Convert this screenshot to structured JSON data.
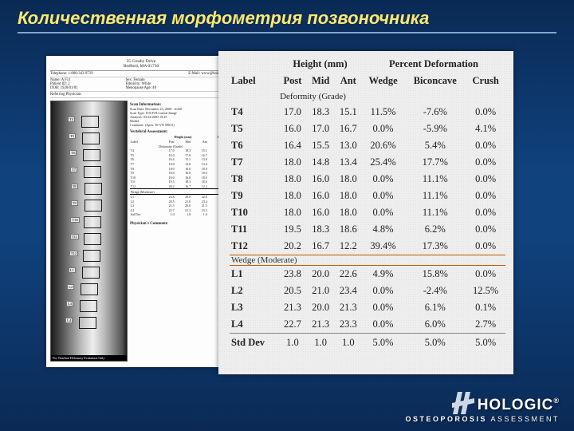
{
  "title": "Количественная морфометрия позвоночника",
  "report": {
    "address1": "35 Crosby Drive",
    "address2": "Bedford, MA 01730",
    "telLabel": "Telephone: 1-800-343-9729",
    "emailLabel": "E-Mail: www@hologic.com",
    "patient": {
      "nameLabel": "Name: A F11",
      "patientLabel": "Patient ID: 2",
      "dobLabel": "DOB: 1928/01/01",
      "sex": "Sex: Female",
      "ethnicity": "Ethnicity: White",
      "menopause": "Menopause Age: 48",
      "height": "Height:",
      "weight": "Weight:",
      "age": "Age: 7"
    },
    "refPhys": "Referring Physician:",
    "scanInfoTitle": "Scan Information:",
    "scanInfo": [
      "Scan Date:  December 23, 2008 - 6/220",
      "Scan Type:  IVA/IVA Lateral Image",
      "Analysis:  03/12/2003 19:25",
      "Model:",
      "Comment:  (Apex: W-5/N 59015)"
    ],
    "vertAssessTitle": "Vertebral Assessment:",
    "miniHeader1": "Height (mm)",
    "miniHeader2": "Pct",
    "miniCols": [
      "Label",
      "Post",
      "Mid",
      "Ant",
      "Wedge"
    ],
    "miniSub": "Deformity (Grade)",
    "physComment": "Physician's Comment:",
    "spineCaption": "For Vertebral Deformity Evaluation Only",
    "spineLabels": [
      "T4",
      "T5",
      "T6",
      "T7",
      "T8",
      "T9",
      "T10",
      "T11",
      "T12",
      "L1",
      "L2",
      "L3",
      "L4"
    ]
  },
  "miniTableRows": [
    {
      "l": "T4",
      "a": "17.0",
      "b": "18.3",
      "c": "15.1",
      "d": "11.5%"
    },
    {
      "l": "T5",
      "a": "16.0",
      "b": "17.0",
      "c": "16.7",
      "d": "0.0%"
    },
    {
      "l": "T6",
      "a": "16.4",
      "b": "15.5",
      "c": "13.0",
      "d": "20.6%"
    },
    {
      "l": "T7",
      "a": "18.0",
      "b": "14.8",
      "c": "13.4",
      "d": "25.4%"
    },
    {
      "l": "T8",
      "a": "18.0",
      "b": "16.0",
      "c": "18.0",
      "d": "0.0%"
    },
    {
      "l": "T9",
      "a": "18.0",
      "b": "16.0",
      "c": "18.0",
      "d": "0.0%"
    },
    {
      "l": "T10",
      "a": "18.0",
      "b": "16.0",
      "c": "18.0",
      "d": "0.0%"
    },
    {
      "l": "T11",
      "a": "19.5",
      "b": "18.3",
      "c": "18.6",
      "d": "4.8%"
    },
    {
      "l": "T12",
      "a": "20.2",
      "b": "16.7",
      "c": "12.2",
      "d": "39.4%"
    },
    {
      "wedge": true,
      "label": "Wedge (Moderate)"
    },
    {
      "l": "L1",
      "a": "23.8",
      "b": "20.0",
      "c": "22.6",
      "d": "4.9%"
    },
    {
      "l": "L2",
      "a": "20.5",
      "b": "21.0",
      "c": "23.4",
      "d": "0.0%"
    },
    {
      "l": "L3",
      "a": "21.3",
      "b": "20.0",
      "c": "21.3",
      "d": "0.0%"
    },
    {
      "l": "L4",
      "a": "22.7",
      "b": "21.3",
      "c": "23.3",
      "d": "0.0%"
    },
    {
      "l": "Std Dev",
      "a": "1.0",
      "b": "1.0",
      "c": "1.0",
      "d": "5.0%"
    }
  ],
  "bigTable": {
    "group1": "Height (mm)",
    "group2": "Percent Deformation",
    "cols": [
      "Label",
      "Post",
      "Mid",
      "Ant",
      "Wedge",
      "Biconcave",
      "Crush"
    ],
    "sub": "Deformity (Grade)",
    "rows": [
      {
        "l": "T4",
        "p": "17.0",
        "m": "18.3",
        "a": "15.1",
        "w": "11.5%",
        "b": "-7.6%",
        "c": "0.0%"
      },
      {
        "l": "T5",
        "p": "16.0",
        "m": "17.0",
        "a": "16.7",
        "w": "0.0%",
        "b": "-5.9%",
        "c": "4.1%"
      },
      {
        "l": "T6",
        "p": "16.4",
        "m": "15.5",
        "a": "13.0",
        "w": "20.6%",
        "b": "5.4%",
        "c": "0.0%"
      },
      {
        "l": "T7",
        "p": "18.0",
        "m": "14.8",
        "a": "13.4",
        "w": "25.4%",
        "b": "17.7%",
        "c": "0.0%"
      },
      {
        "l": "T8",
        "p": "18.0",
        "m": "16.0",
        "a": "18.0",
        "w": "0.0%",
        "b": "11.1%",
        "c": "0.0%"
      },
      {
        "l": "T9",
        "p": "18.0",
        "m": "16.0",
        "a": "18.0",
        "w": "0.0%",
        "b": "11.1%",
        "c": "0.0%"
      },
      {
        "l": "T10",
        "p": "18.0",
        "m": "16.0",
        "a": "18.0",
        "w": "0.0%",
        "b": "11.1%",
        "c": "0.0%"
      },
      {
        "l": "T11",
        "p": "19.5",
        "m": "18.3",
        "a": "18.6",
        "w": "4.8%",
        "b": "6.2%",
        "c": "0.0%"
      },
      {
        "l": "T12",
        "p": "20.2",
        "m": "16.7",
        "a": "12.2",
        "w": "39.4%",
        "b": "17.3%",
        "c": "0.0%"
      },
      {
        "wedge": true,
        "label": "Wedge (Moderate)"
      },
      {
        "l": "L1",
        "p": "23.8",
        "m": "20.0",
        "a": "22.6",
        "w": "4.9%",
        "b": "15.8%",
        "c": "0.0%"
      },
      {
        "l": "L2",
        "p": "20.5",
        "m": "21.0",
        "a": "23.4",
        "w": "0.0%",
        "b": "-2.4%",
        "c": "12.5%"
      },
      {
        "l": "L3",
        "p": "21.3",
        "m": "20.0",
        "a": "21.3",
        "w": "0.0%",
        "b": "6.1%",
        "c": "0.1%"
      },
      {
        "l": "L4",
        "p": "22.7",
        "m": "21.3",
        "a": "23.3",
        "w": "0.0%",
        "b": "6.0%",
        "c": "2.7%"
      },
      {
        "stddev": true,
        "l": "Std Dev",
        "p": "1.0",
        "m": "1.0",
        "a": "1.0",
        "w": "5.0%",
        "b": "5.0%",
        "c": "5.0%"
      }
    ]
  },
  "logo": {
    "name": "HOLOGIC",
    "reg": "®",
    "sub1": "OSTEOPOROSIS",
    "sub2": " ASSESSMENT"
  }
}
